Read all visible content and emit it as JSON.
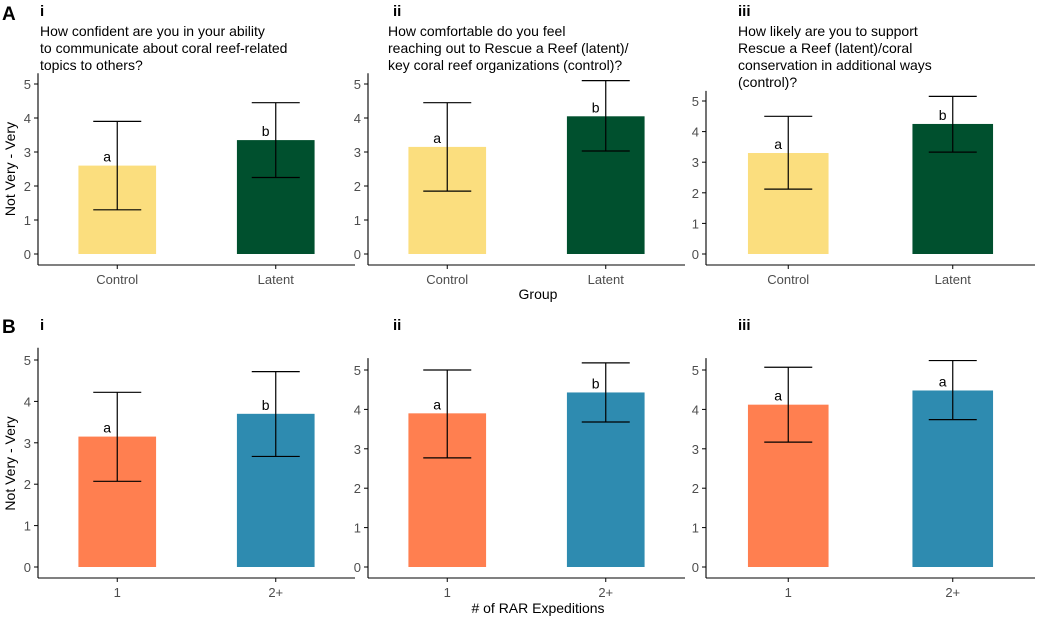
{
  "figure": {
    "row_labels": [
      "A",
      "B"
    ],
    "row_a_xlabel": "Group",
    "row_b_xlabel": "# of RAR Expeditions",
    "ylabel": "Not Very - Very"
  },
  "colors": {
    "control": "#FBDE7E",
    "latent": "#00502E",
    "one": "#FF7F50",
    "two_plus": "#2E8BB0",
    "axis": "#000000",
    "tick_text": "#4d4d4d"
  },
  "chart_data": [
    {
      "id": "A-i",
      "row": "A",
      "panel_label": "i",
      "type": "bar",
      "title": [
        "How confident are you in your ability",
        "to communicate about coral reef-related",
        "topics to others?"
      ],
      "categories": [
        "Control",
        "Latent"
      ],
      "values": [
        2.6,
        3.35
      ],
      "err_low": [
        1.3,
        2.25
      ],
      "err_high": [
        3.9,
        4.45
      ],
      "sig_labels": [
        "a",
        "b"
      ],
      "bar_colors": [
        "control",
        "latent"
      ],
      "yticks": [
        0,
        1,
        2,
        3,
        4,
        5
      ],
      "ylim": [
        0,
        5.2
      ],
      "ylabel": "Not Very - Very"
    },
    {
      "id": "A-ii",
      "row": "A",
      "panel_label": "ii",
      "type": "bar",
      "title": [
        "How comfortable do you feel",
        "reaching out to Rescue a Reef (latent)/",
        "key coral reef organizations (control)?"
      ],
      "categories": [
        "Control",
        "Latent"
      ],
      "values": [
        3.15,
        4.05
      ],
      "err_low": [
        1.85,
        3.03
      ],
      "err_high": [
        4.45,
        5.1
      ],
      "sig_labels": [
        "a",
        "b"
      ],
      "bar_colors": [
        "control",
        "latent"
      ],
      "yticks": [
        0,
        1,
        2,
        3,
        4,
        5
      ],
      "ylim": [
        0,
        5.2
      ],
      "ylabel": ""
    },
    {
      "id": "A-iii",
      "row": "A",
      "panel_label": "iii",
      "type": "bar",
      "title": [
        "How likely are you to support",
        "Rescue a Reef (latent)/coral",
        "conservation in additional ways",
        "(control)?"
      ],
      "categories": [
        "Control",
        "Latent"
      ],
      "values": [
        3.3,
        4.25
      ],
      "err_low": [
        2.12,
        3.33
      ],
      "err_high": [
        4.5,
        5.15
      ],
      "sig_labels": [
        "a",
        "b"
      ],
      "bar_colors": [
        "control",
        "latent"
      ],
      "yticks": [
        0,
        1,
        2,
        3,
        4,
        5
      ],
      "ylim": [
        0,
        5.2
      ],
      "ylabel": ""
    },
    {
      "id": "B-i",
      "row": "B",
      "panel_label": "i",
      "type": "bar",
      "title": [],
      "categories": [
        "1",
        "2+"
      ],
      "values": [
        3.15,
        3.7
      ],
      "err_low": [
        2.07,
        2.67
      ],
      "err_high": [
        4.22,
        4.72
      ],
      "sig_labels": [
        "a",
        "b"
      ],
      "bar_colors": [
        "one",
        "two_plus"
      ],
      "yticks": [
        0,
        1,
        2,
        3,
        4,
        5
      ],
      "ylim": [
        0,
        5.2
      ],
      "ylabel": "Not Very - Very"
    },
    {
      "id": "B-ii",
      "row": "B",
      "panel_label": "ii",
      "type": "bar",
      "title": [],
      "categories": [
        "1",
        "2+"
      ],
      "values": [
        3.9,
        4.43
      ],
      "err_low": [
        2.77,
        3.68
      ],
      "err_high": [
        5.0,
        5.18
      ],
      "sig_labels": [
        "a",
        "b"
      ],
      "bar_colors": [
        "one",
        "two_plus"
      ],
      "yticks": [
        0,
        1,
        2,
        3,
        4,
        5
      ],
      "ylim": [
        0,
        5.2
      ],
      "ylabel": ""
    },
    {
      "id": "B-iii",
      "row": "B",
      "panel_label": "iii",
      "type": "bar",
      "title": [],
      "categories": [
        "1",
        "2+"
      ],
      "values": [
        4.12,
        4.48
      ],
      "err_low": [
        3.17,
        3.74
      ],
      "err_high": [
        5.07,
        5.24
      ],
      "sig_labels": [
        "a",
        "a"
      ],
      "bar_colors": [
        "one",
        "two_plus"
      ],
      "yticks": [
        0,
        1,
        2,
        3,
        4,
        5
      ],
      "ylim": [
        0,
        5.2
      ],
      "ylabel": ""
    }
  ]
}
